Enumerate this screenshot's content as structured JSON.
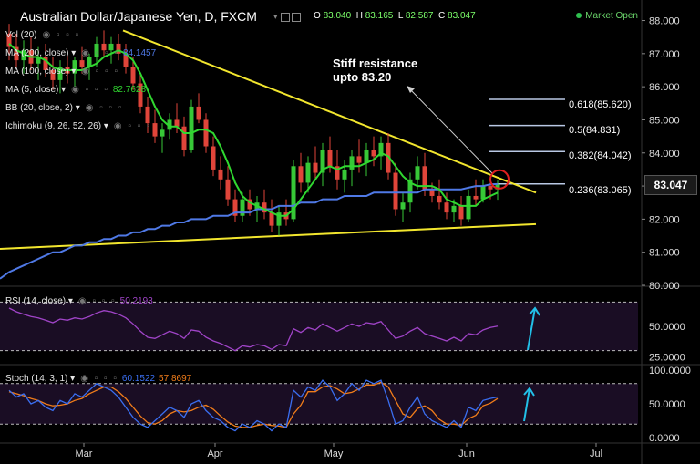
{
  "header": {
    "title": "Australian Dollar/Japanese Yen, D, FXCM",
    "ohlc": {
      "o_label": "O",
      "o": "83.040",
      "h_label": "H",
      "h": "83.165",
      "l_label": "L",
      "l": "82.587",
      "c_label": "C",
      "c": "83.047"
    },
    "market_status": "Market Open"
  },
  "indicators": [
    {
      "label": "Vol (20)",
      "value": ""
    },
    {
      "label": "MA (200, close)",
      "value": "84.1457"
    },
    {
      "label": "MA (100, close)",
      "value": ""
    },
    {
      "label": "MA (5, close)",
      "value": "82.7628"
    },
    {
      "label": "BB (20, close, 2)",
      "value": ""
    },
    {
      "label": "Ichimoku (9, 26, 52, 26)",
      "value": ""
    }
  ],
  "annotation": {
    "line1": "Stiff resistance",
    "line2": "upto 83.20"
  },
  "last_price": "83.047",
  "colors": {
    "bull": "#37c837",
    "bear": "#e0453a",
    "ma5": "#30d830",
    "ma100": "#4f79e6",
    "trend": "#f2e62e",
    "fib": "#b9c8e4",
    "rsi": "#a044c8",
    "stoch_k": "#3a6ef0",
    "stoch_d": "#f07c1a",
    "arrow": "#22c0e8",
    "circle": "#e02020"
  },
  "chart_data": [
    {
      "type": "candlestick",
      "title": "Australian Dollar/Japanese Yen, D, FXCM",
      "x_labels": [
        "Mar",
        "Apr",
        "May",
        "Jun",
        "Jul"
      ],
      "y_ticks": [
        "88.000",
        "87.000",
        "86.000",
        "85.000",
        "84.000",
        "83.000",
        "82.000",
        "81.000",
        "80.000"
      ],
      "ylim": [
        80,
        88.4
      ],
      "candles": [
        [
          87.6,
          87.9,
          86.8,
          87.2
        ],
        [
          87.2,
          87.6,
          86.6,
          86.8
        ],
        [
          86.8,
          87.4,
          86.4,
          87.1
        ],
        [
          87.1,
          87.5,
          86.5,
          86.7
        ],
        [
          86.7,
          87.2,
          86.2,
          86.9
        ],
        [
          86.9,
          87.3,
          86.3,
          86.5
        ],
        [
          86.5,
          86.9,
          85.9,
          86.2
        ],
        [
          86.2,
          86.8,
          85.8,
          86.6
        ],
        [
          86.6,
          87.1,
          86.1,
          86.4
        ],
        [
          86.4,
          86.9,
          86.0,
          86.8
        ],
        [
          86.8,
          87.2,
          86.4,
          86.6
        ],
        [
          86.6,
          87.0,
          86.2,
          86.9
        ],
        [
          86.9,
          87.5,
          86.6,
          87.3
        ],
        [
          87.3,
          87.7,
          86.9,
          87.1
        ],
        [
          87.1,
          87.5,
          86.7,
          87.3
        ],
        [
          87.3,
          87.6,
          86.8,
          87.0
        ],
        [
          87.0,
          87.3,
          86.4,
          86.6
        ],
        [
          86.6,
          86.9,
          85.9,
          86.1
        ],
        [
          86.1,
          86.4,
          85.2,
          85.4
        ],
        [
          85.4,
          85.7,
          84.6,
          84.9
        ],
        [
          84.9,
          85.3,
          84.3,
          84.5
        ],
        [
          84.5,
          84.9,
          84.0,
          84.7
        ],
        [
          84.7,
          85.2,
          84.4,
          85.0
        ],
        [
          85.0,
          85.5,
          84.6,
          84.8
        ],
        [
          84.8,
          85.1,
          83.9,
          84.1
        ],
        [
          84.1,
          85.6,
          84.0,
          85.4
        ],
        [
          85.4,
          85.8,
          84.9,
          85.0
        ],
        [
          85.0,
          85.2,
          84.0,
          84.2
        ],
        [
          84.2,
          84.5,
          83.3,
          83.5
        ],
        [
          83.5,
          83.9,
          82.9,
          83.2
        ],
        [
          83.2,
          83.6,
          82.4,
          82.6
        ],
        [
          82.6,
          82.9,
          81.9,
          82.1
        ],
        [
          82.1,
          82.8,
          81.9,
          82.6
        ],
        [
          82.6,
          82.9,
          82.1,
          82.3
        ],
        [
          82.3,
          82.7,
          81.9,
          82.5
        ],
        [
          82.5,
          82.9,
          82.0,
          82.2
        ],
        [
          82.2,
          82.6,
          81.6,
          81.8
        ],
        [
          81.8,
          82.4,
          81.5,
          82.2
        ],
        [
          82.2,
          82.6,
          81.8,
          82.0
        ],
        [
          82.0,
          83.8,
          81.9,
          83.6
        ],
        [
          83.6,
          84.0,
          82.8,
          83.1
        ],
        [
          83.1,
          83.9,
          82.8,
          83.7
        ],
        [
          83.7,
          84.2,
          83.2,
          83.4
        ],
        [
          83.4,
          84.3,
          83.0,
          84.1
        ],
        [
          84.1,
          84.5,
          83.4,
          83.6
        ],
        [
          83.6,
          84.1,
          82.9,
          83.2
        ],
        [
          83.2,
          83.8,
          82.8,
          83.5
        ],
        [
          83.5,
          84.1,
          83.0,
          83.9
        ],
        [
          83.9,
          84.4,
          83.4,
          83.7
        ],
        [
          83.7,
          84.3,
          83.3,
          84.1
        ],
        [
          84.1,
          84.5,
          83.6,
          83.9
        ],
        [
          83.9,
          84.5,
          83.5,
          84.3
        ],
        [
          84.3,
          84.6,
          83.2,
          83.4
        ],
        [
          83.4,
          83.7,
          82.1,
          82.3
        ],
        [
          82.3,
          82.8,
          81.9,
          82.5
        ],
        [
          82.5,
          83.4,
          82.2,
          83.2
        ],
        [
          83.2,
          83.9,
          82.9,
          83.6
        ],
        [
          83.6,
          84.0,
          82.7,
          82.9
        ],
        [
          82.9,
          83.1,
          82.5,
          82.7
        ],
        [
          82.7,
          83.2,
          82.3,
          82.5
        ],
        [
          82.5,
          82.8,
          82.0,
          82.2
        ],
        [
          82.2,
          82.6,
          81.9,
          82.4
        ],
        [
          82.4,
          82.7,
          81.8,
          82.0
        ],
        [
          82.0,
          82.9,
          81.9,
          82.7
        ],
        [
          82.7,
          83.2,
          82.4,
          82.6
        ],
        [
          82.6,
          83.2,
          82.5,
          83.0
        ],
        [
          83.0,
          83.1,
          82.6,
          82.9
        ],
        [
          82.9,
          83.165,
          82.587,
          83.047
        ]
      ],
      "ma5": [
        87.3,
        87.1,
        87.0,
        86.9,
        86.9,
        86.8,
        86.6,
        86.5,
        86.5,
        86.5,
        86.5,
        86.6,
        86.7,
        86.9,
        87.0,
        87.1,
        87.0,
        86.8,
        86.4,
        85.9,
        85.4,
        85.0,
        84.8,
        84.8,
        84.6,
        84.6,
        84.7,
        84.7,
        84.6,
        84.2,
        83.7,
        83.1,
        82.7,
        82.5,
        82.4,
        82.3,
        82.2,
        82.1,
        82.1,
        82.3,
        82.6,
        82.9,
        83.2,
        83.5,
        83.6,
        83.5,
        83.6,
        83.6,
        83.6,
        83.7,
        83.8,
        84.0,
        83.9,
        83.6,
        83.3,
        83.1,
        83.0,
        83.0,
        83.0,
        82.9,
        82.6,
        82.5,
        82.4,
        82.4,
        82.4,
        82.6,
        82.7,
        82.8
      ],
      "ma100": [
        80.4,
        80.5,
        80.6,
        80.7,
        80.8,
        80.9,
        81.0,
        81.0,
        81.1,
        81.2,
        81.2,
        81.3,
        81.3,
        81.4,
        81.4,
        81.5,
        81.5,
        81.6,
        81.6,
        81.7,
        81.7,
        81.8,
        81.8,
        81.9,
        81.9,
        82.0,
        82.0,
        82.0,
        82.1,
        82.1,
        82.1,
        82.2,
        82.2,
        82.2,
        82.3,
        82.3,
        82.3,
        82.4,
        82.4,
        82.4,
        82.5,
        82.5,
        82.5,
        82.6,
        82.6,
        82.6,
        82.7,
        82.7,
        82.7,
        82.7,
        82.8,
        82.8,
        82.8,
        82.8,
        82.8,
        82.8,
        82.8,
        82.9,
        82.9,
        82.9,
        82.9,
        82.9,
        82.9,
        82.95,
        83.0,
        83.0,
        83.05,
        83.06
      ],
      "fibonacci": [
        {
          "label": "0.618(85.620)",
          "level": 85.62
        },
        {
          "label": "0.5(84.831)",
          "level": 84.831
        },
        {
          "label": "0.382(84.042)",
          "level": 84.042
        },
        {
          "label": "0.236(83.065)",
          "level": 83.065
        }
      ]
    },
    {
      "type": "line",
      "title": "RSI (14, close)",
      "value_label": "50.2193",
      "y_ticks": [
        "50.0000",
        "25.0000"
      ],
      "levels": [
        70,
        30
      ],
      "ylim": [
        20,
        80
      ],
      "values": [
        65,
        62,
        60,
        58,
        57,
        55,
        53,
        56,
        55,
        57,
        56,
        58,
        61,
        63,
        62,
        60,
        57,
        52,
        46,
        41,
        40,
        43,
        46,
        44,
        40,
        47,
        46,
        41,
        38,
        36,
        33,
        30,
        34,
        33,
        35,
        34,
        31,
        35,
        34,
        48,
        45,
        49,
        47,
        52,
        49,
        46,
        49,
        52,
        50,
        53,
        52,
        54,
        47,
        40,
        42,
        46,
        49,
        44,
        42,
        40,
        38,
        41,
        38,
        44,
        43,
        47,
        49,
        50.2
      ]
    },
    {
      "type": "line",
      "title": "Stoch (14, 3, 1)",
      "series": [
        {
          "name": "K",
          "value_label": "60.1522",
          "values": [
            70,
            60,
            65,
            50,
            55,
            45,
            40,
            55,
            50,
            65,
            60,
            70,
            80,
            75,
            70,
            60,
            45,
            30,
            20,
            15,
            25,
            35,
            45,
            40,
            30,
            50,
            55,
            40,
            30,
            25,
            15,
            10,
            20,
            15,
            25,
            20,
            10,
            20,
            15,
            70,
            60,
            75,
            70,
            85,
            75,
            55,
            65,
            80,
            70,
            85,
            80,
            85,
            55,
            20,
            25,
            45,
            60,
            35,
            25,
            20,
            15,
            25,
            15,
            45,
            40,
            55,
            58,
            60.2
          ]
        },
        {
          "name": "D",
          "value_label": "57.8697",
          "values": [
            68,
            65,
            62,
            58,
            55,
            50,
            47,
            48,
            50,
            55,
            58,
            65,
            70,
            75,
            75,
            68,
            58,
            45,
            32,
            22,
            20,
            25,
            35,
            40,
            38,
            40,
            45,
            48,
            42,
            32,
            23,
            17,
            15,
            15,
            18,
            20,
            18,
            17,
            15,
            35,
            48,
            68,
            68,
            75,
            77,
            72,
            65,
            67,
            72,
            78,
            78,
            82,
            75,
            55,
            35,
            30,
            43,
            47,
            40,
            27,
            20,
            20,
            18,
            28,
            33,
            47,
            51,
            57.9
          ]
        }
      ],
      "y_ticks": [
        "100.0000",
        "50.0000",
        "0.0000"
      ],
      "levels": [
        80,
        20
      ],
      "ylim": [
        0,
        100
      ]
    }
  ]
}
